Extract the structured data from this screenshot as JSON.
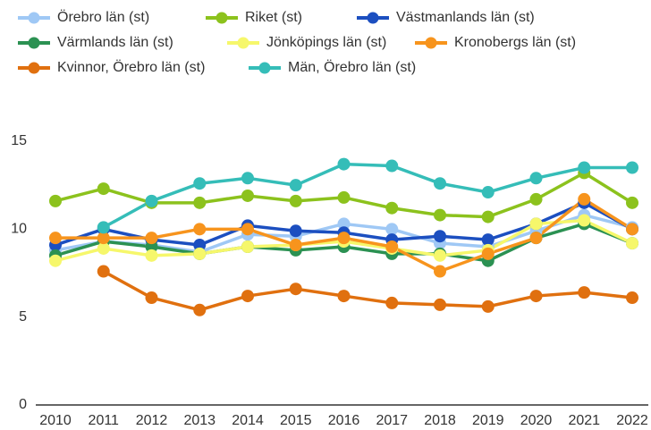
{
  "chart_data": {
    "type": "line",
    "categories": [
      "2010",
      "2011",
      "2012",
      "2013",
      "2014",
      "2015",
      "2016",
      "2017",
      "2018",
      "2019",
      "2020",
      "2021",
      "2022"
    ],
    "series": [
      {
        "name": "Örebro län (st)",
        "color": "#9fc8f5",
        "values": [
          8.8,
          9.3,
          9.1,
          8.7,
          9.7,
          9.6,
          10.3,
          10.0,
          9.2,
          9.0,
          9.9,
          10.8,
          10.1
        ]
      },
      {
        "name": "Riket (st)",
        "color": "#8cc21d",
        "values": [
          11.6,
          12.3,
          11.5,
          11.5,
          11.9,
          11.6,
          11.8,
          11.2,
          10.8,
          10.7,
          11.7,
          13.2,
          11.5
        ]
      },
      {
        "name": "Västmanlands län (st)",
        "color": "#1c4fc0",
        "values": [
          9.1,
          10.0,
          9.4,
          9.1,
          10.2,
          9.9,
          9.8,
          9.4,
          9.6,
          9.4,
          10.3,
          11.5,
          10.0
        ]
      },
      {
        "name": "Värmlands län (st)",
        "color": "#2b9152",
        "values": [
          8.5,
          9.3,
          9.0,
          8.6,
          9.0,
          8.8,
          9.0,
          8.6,
          8.6,
          8.2,
          9.5,
          10.3,
          9.2
        ]
      },
      {
        "name": "Jönköpings län (st)",
        "color": "#f6f76b",
        "values": [
          8.2,
          8.9,
          8.5,
          8.6,
          9.0,
          9.1,
          9.3,
          8.9,
          8.5,
          8.8,
          10.3,
          10.5,
          9.2
        ]
      },
      {
        "name": "Kronobergs län (st)",
        "color": "#f7941d",
        "values": [
          9.5,
          9.5,
          9.5,
          10.0,
          10.0,
          9.1,
          9.5,
          9.0,
          7.6,
          8.6,
          9.5,
          11.7,
          10.0
        ]
      },
      {
        "name": "Kvinnor, Örebro län (st)",
        "color": "#e0700f",
        "values": [
          null,
          7.6,
          6.1,
          5.4,
          6.2,
          6.6,
          6.2,
          5.8,
          5.7,
          5.6,
          6.2,
          6.4,
          6.1
        ]
      },
      {
        "name": "Män, Örebro län (st)",
        "color": "#35bdb8",
        "values": [
          null,
          10.1,
          11.6,
          12.6,
          12.9,
          12.5,
          13.7,
          13.6,
          12.6,
          12.1,
          12.9,
          13.5,
          13.5
        ]
      }
    ],
    "ylim": [
      0,
      15
    ],
    "yticks": [
      0,
      5,
      10,
      15
    ],
    "grid": false,
    "legend": "top"
  }
}
